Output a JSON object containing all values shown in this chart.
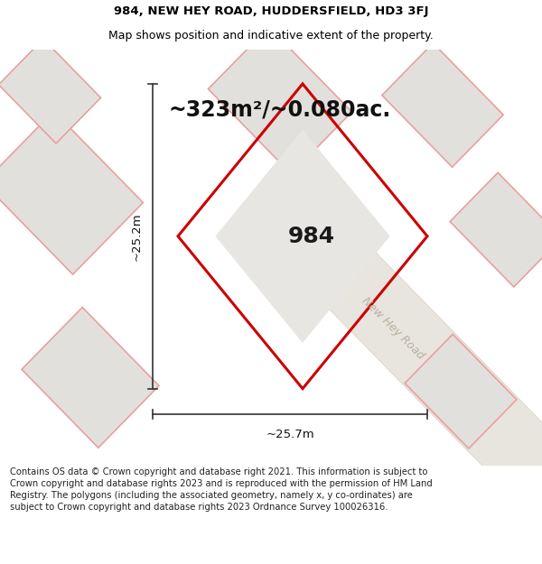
{
  "title_line1": "984, NEW HEY ROAD, HUDDERSFIELD, HD3 3FJ",
  "title_line2": "Map shows position and indicative extent of the property.",
  "area_text": "~323m²/~0.080ac.",
  "property_number": "984",
  "dim_vertical": "~25.2m",
  "dim_horizontal": "~25.7m",
  "road_label": "New Hey Road",
  "footer_text": "Contains OS data © Crown copyright and database right 2021. This information is subject to Crown copyright and database rights 2023 and is reproduced with the permission of HM Land Registry. The polygons (including the associated geometry, namely x, y co-ordinates) are subject to Crown copyright and database rights 2023 Ordnance Survey 100026316.",
  "map_bg": "#f5f3f0",
  "neighbor_fill": "#e2e0dc",
  "neighbor_stroke": "#e8a0a0",
  "road_fill": "#e8e4de",
  "road_stroke": "#d8d0c0",
  "plot_fill": "#e8e6e2",
  "plot_stroke": "#cc0000",
  "title_fontsize": 9.5,
  "area_fontsize": 17,
  "dim_fontsize": 9.5,
  "label_fontsize": 18,
  "road_fontsize": 9,
  "footer_fontsize": 7.2,
  "neighbor_lw": 1.2,
  "plot_lw": 2.2
}
